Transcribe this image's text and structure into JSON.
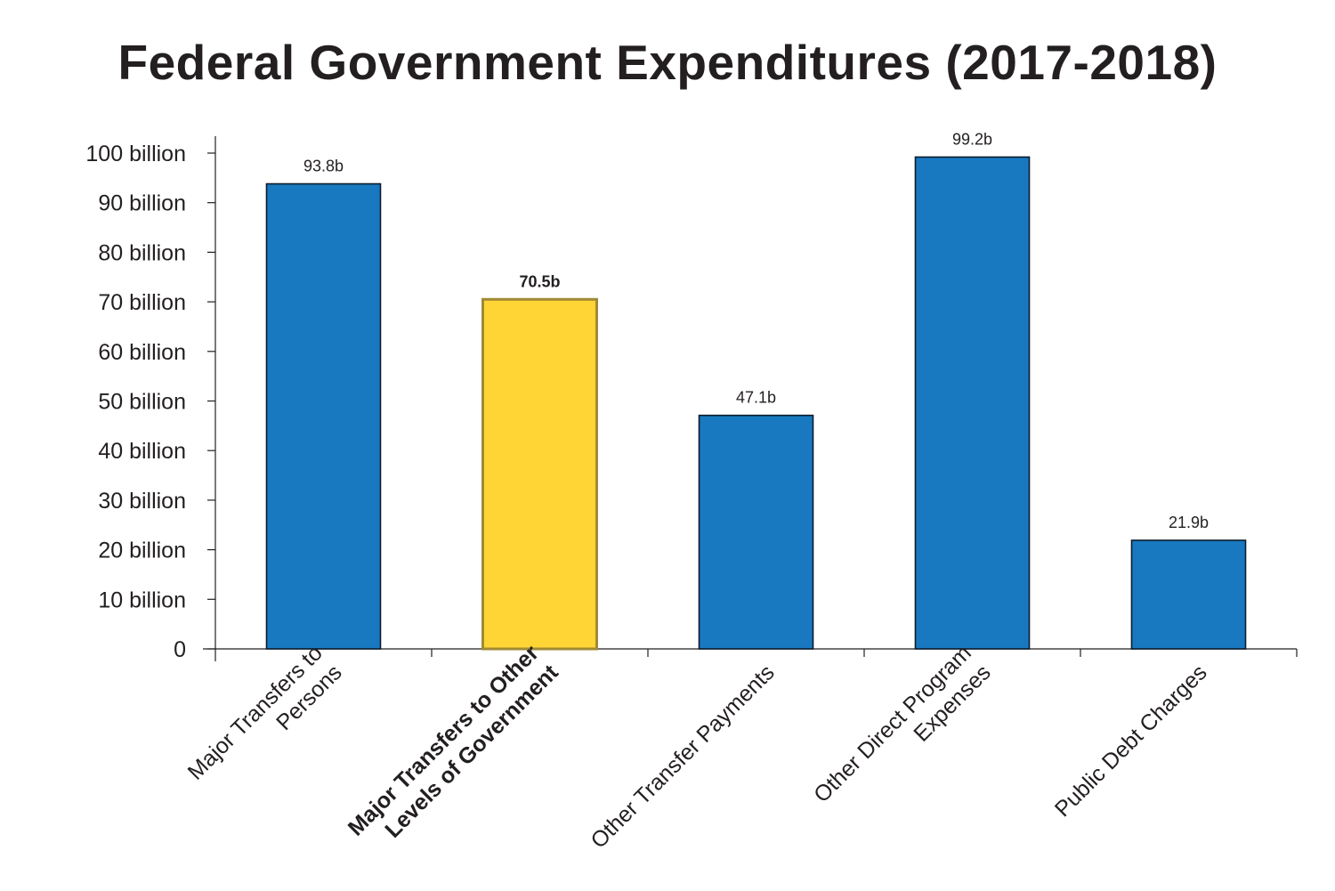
{
  "chart_data": {
    "type": "bar",
    "title": "Federal Government Expenditures (2017-2018)",
    "xlabel": "",
    "ylabel": "",
    "categories": [
      [
        "Major Transfers to",
        "Persons"
      ],
      [
        "Major Transfers to Other",
        "Levels of Government"
      ],
      [
        "Other Transfer Payments"
      ],
      [
        "Other Direct Program",
        "Expenses"
      ],
      [
        "Public Debt Charges"
      ]
    ],
    "values": [
      93.8,
      70.5,
      47.1,
      99.2,
      21.9
    ],
    "value_labels": [
      "93.8b",
      "70.5b",
      "47.1b",
      "99.2b",
      "21.9b"
    ],
    "highlight_index": 1,
    "ylim": [
      0,
      100
    ],
    "yticks": [
      0,
      10,
      20,
      30,
      40,
      50,
      60,
      70,
      80,
      90,
      100
    ],
    "ytick_labels": [
      "0",
      "10 billion",
      "20 billion",
      "30 billion",
      "40 billion",
      "50 billion",
      "60 billion",
      "70 billion",
      "80 billion",
      "90 billion",
      "100 billion"
    ],
    "grid": false,
    "legend": "none",
    "colors": {
      "bar": "#1879c0",
      "bar_border": "#0c1c2c",
      "highlight": "#fed535",
      "highlight_border": "#a18a35",
      "axis": "#231f20"
    }
  }
}
